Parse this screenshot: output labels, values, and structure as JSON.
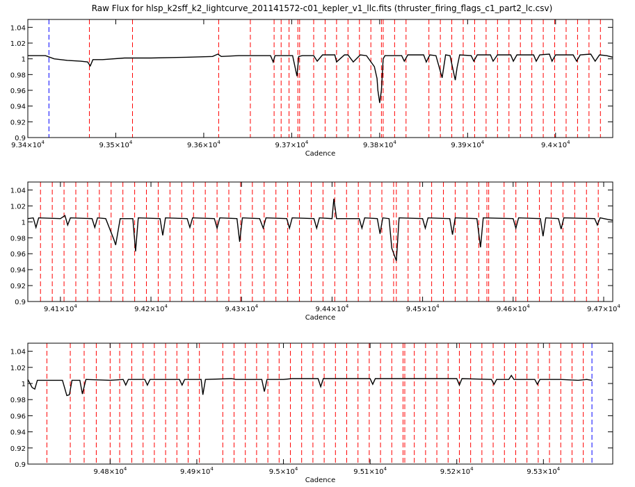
{
  "title": "Raw Flux for hlsp_k2sff_k2_lightcurve_201141572-c01_kepler_v1_llc.fits (thruster_firing_flags_c1_part2_lc.csv)",
  "colors": {
    "flux": "#000000",
    "thruster_flag": "#ff0000",
    "boundary": "#0000ff"
  },
  "chart_data": [
    {
      "type": "line",
      "xlabel": "Cadence",
      "ylabel": "",
      "xlim": [
        93400,
        94065
      ],
      "ylim": [
        0.9,
        1.05
      ],
      "yticks": [
        0.9,
        0.92,
        0.94,
        0.96,
        0.98,
        1,
        1.02,
        1.04
      ],
      "ytick_labels": [
        "0.9",
        "0.92",
        "0.94",
        "0.96",
        "0.98",
        "1",
        "1.02",
        "1.04"
      ],
      "xticks": [
        93400,
        93500,
        93600,
        93700,
        93800,
        93900,
        94000
      ],
      "xtick_labels": [
        {
          "mantissa": "9.34",
          "exp": "4"
        },
        {
          "mantissa": "9.35",
          "exp": "4"
        },
        {
          "mantissa": "9.36",
          "exp": "4"
        },
        {
          "mantissa": "9.37",
          "exp": "4"
        },
        {
          "mantissa": "9.38",
          "exp": "4"
        },
        {
          "mantissa": "9.39",
          "exp": "4"
        },
        {
          "mantissa": "9.4",
          "exp": "4"
        }
      ],
      "boundary_lines": [
        93424
      ],
      "thruster_lines": [
        93470,
        93519,
        93617,
        93653,
        93680,
        93688,
        93697,
        93707,
        93709,
        93725,
        93738,
        93751,
        93764,
        93777,
        93790,
        93802,
        93804,
        93817,
        93830,
        93856,
        93869,
        93882,
        93895,
        93908,
        93921,
        93934,
        93947,
        93960,
        93973,
        93986,
        93999,
        94012,
        94025,
        94038,
        94051
      ],
      "series": [
        {
          "x": [
            93400,
            93420,
            93430,
            93445,
            93460,
            93468,
            93471,
            93474,
            93485,
            93510,
            93540,
            93580,
            93610,
            93616,
            93620,
            93640,
            93676,
            93679,
            93681,
            93688,
            93701,
            93706,
            93708,
            93712,
            93725,
            93729,
            93735,
            93749,
            93751,
            93760,
            93764,
            93770,
            93778,
            93785,
            93794,
            93797,
            93798,
            93800,
            93802,
            93804,
            93806,
            93810,
            93825,
            93828,
            93832,
            93850,
            93853,
            93857,
            93864,
            93871,
            93875,
            93880,
            93886,
            93888,
            93891,
            93904,
            93907,
            93911,
            93926,
            93929,
            93934,
            93949,
            93952,
            93956,
            93975,
            93978,
            93982,
            93993,
            93996,
            94000,
            94020,
            94024,
            94028,
            94040,
            94045,
            94050,
            94058,
            94065
          ],
          "y": [
            1.004,
            1.004,
            1.0,
            0.998,
            0.997,
            0.996,
            0.991,
            0.999,
            0.999,
            1.001,
            1.001,
            1.002,
            1.003,
            1.006,
            1.003,
            1.004,
            1.004,
            0.996,
            1.004,
            1.004,
            1.004,
            0.978,
            1.003,
            1.004,
            1.004,
            0.997,
            1.005,
            1.005,
            0.996,
            1.005,
            1.005,
            0.996,
            1.005,
            1.004,
            0.99,
            0.975,
            0.96,
            0.944,
            0.96,
            1.0,
            1.004,
            1.004,
            1.004,
            0.997,
            1.005,
            1.005,
            0.996,
            1.005,
            1.004,
            0.976,
            1.005,
            1.004,
            0.973,
            0.989,
            1.005,
            1.004,
            0.997,
            1.005,
            1.005,
            0.997,
            1.005,
            1.005,
            0.997,
            1.005,
            1.005,
            0.997,
            1.005,
            1.006,
            0.997,
            1.005,
            1.005,
            0.997,
            1.005,
            1.006,
            0.997,
            1.005,
            1.004,
            1.002
          ]
        }
      ]
    },
    {
      "type": "line",
      "xlabel": "Cadence",
      "ylabel": "",
      "xlim": [
        94064,
        94710
      ],
      "ylim": [
        0.9,
        1.05
      ],
      "yticks": [
        0.9,
        0.92,
        0.94,
        0.96,
        0.98,
        1,
        1.02,
        1.04
      ],
      "ytick_labels": [
        "0.9",
        "0.92",
        "0.94",
        "0.96",
        "0.98",
        "1",
        "1.02",
        "1.04"
      ],
      "xticks": [
        94100,
        94200,
        94300,
        94400,
        94500,
        94600,
        94700
      ],
      "xtick_labels": [
        {
          "mantissa": "9.41",
          "exp": "4"
        },
        {
          "mantissa": "9.42",
          "exp": "4"
        },
        {
          "mantissa": "9.43",
          "exp": "4"
        },
        {
          "mantissa": "9.44",
          "exp": "4"
        },
        {
          "mantissa": "9.45",
          "exp": "4"
        },
        {
          "mantissa": "9.46",
          "exp": "4"
        },
        {
          "mantissa": "9.47",
          "exp": "4"
        }
      ],
      "boundary_lines": [],
      "thruster_lines": [
        94078,
        94091,
        94104,
        94117,
        94130,
        94143,
        94156,
        94169,
        94182,
        94195,
        94208,
        94221,
        94234,
        94247,
        94260,
        94273,
        94286,
        94299,
        94312,
        94325,
        94338,
        94351,
        94364,
        94377,
        94390,
        94403,
        94416,
        94429,
        94442,
        94455,
        94468,
        94471,
        94484,
        94497,
        94510,
        94523,
        94536,
        94549,
        94562,
        94571,
        94573,
        94590,
        94603,
        94616,
        94629,
        94642,
        94655,
        94668,
        94681,
        94694
      ],
      "series": [
        {
          "x": [
            94064,
            94070,
            94073,
            94076,
            94100,
            94105,
            94108,
            94111,
            94135,
            94138,
            94141,
            94150,
            94159,
            94161,
            94166,
            94180,
            94183,
            94186,
            94210,
            94213,
            94216,
            94240,
            94243,
            94246,
            94270,
            94273,
            94276,
            94295,
            94298,
            94301,
            94320,
            94324,
            94327,
            94350,
            94353,
            94356,
            94380,
            94383,
            94386,
            94400,
            94402,
            94405,
            94408,
            94430,
            94433,
            94436,
            94450,
            94453,
            94456,
            94463,
            94466,
            94471,
            94474,
            94500,
            94503,
            94506,
            94530,
            94533,
            94536,
            94560,
            94564,
            94567,
            94600,
            94603,
            94606,
            94630,
            94633,
            94636,
            94650,
            94653,
            94656,
            94690,
            94693,
            94696,
            94705,
            94710
          ],
          "y": [
            1.004,
            1.005,
            0.993,
            1.005,
            1.004,
            1.008,
            0.996,
            1.005,
            1.004,
            0.993,
            1.005,
            1.004,
            0.978,
            0.971,
            1.004,
            1.004,
            0.963,
            1.005,
            1.004,
            0.983,
            1.005,
            1.004,
            0.993,
            1.005,
            1.004,
            0.992,
            1.005,
            1.004,
            0.975,
            1.005,
            1.004,
            0.992,
            1.005,
            1.004,
            0.992,
            1.005,
            1.004,
            0.992,
            1.005,
            1.004,
            1.029,
            1.004,
            1.004,
            1.004,
            0.992,
            1.005,
            1.004,
            0.985,
            1.005,
            1.004,
            0.967,
            0.951,
            1.005,
            1.004,
            0.992,
            1.005,
            1.004,
            0.984,
            1.005,
            1.004,
            0.968,
            1.005,
            1.004,
            0.992,
            1.005,
            1.004,
            0.982,
            1.005,
            1.004,
            0.991,
            1.005,
            1.004,
            0.996,
            1.005,
            1.003,
            1.002
          ]
        }
      ]
    },
    {
      "type": "line",
      "xlabel": "Cadence",
      "ylabel": "",
      "xlim": [
        94705,
        95380
      ],
      "ylim": [
        0.9,
        1.05
      ],
      "yticks": [
        0.9,
        0.92,
        0.94,
        0.96,
        0.98,
        1,
        1.02,
        1.04
      ],
      "ytick_labels": [
        "0.9",
        "0.92",
        "0.94",
        "0.96",
        "0.98",
        "1",
        "1.02",
        "1.04"
      ],
      "xticks": [
        94800,
        94900,
        95000,
        95100,
        95200,
        95300
      ],
      "xtick_labels": [
        {
          "mantissa": "9.48",
          "exp": "4"
        },
        {
          "mantissa": "9.49",
          "exp": "4"
        },
        {
          "mantissa": "9.5",
          "exp": "4"
        },
        {
          "mantissa": "9.51",
          "exp": "4"
        },
        {
          "mantissa": "9.52",
          "exp": "4"
        },
        {
          "mantissa": "9.53",
          "exp": "4"
        }
      ],
      "boundary_lines": [
        95356
      ],
      "thruster_lines": [
        94727,
        94754,
        94770,
        94784,
        94800,
        94811,
        94825,
        94838,
        94851,
        94864,
        94877,
        94890,
        94903,
        94930,
        94943,
        94956,
        94969,
        94982,
        94995,
        95008,
        95021,
        95034,
        95047,
        95060,
        95073,
        95086,
        95099,
        95112,
        95125,
        95138,
        95140,
        95151,
        95164,
        95177,
        95190,
        95203,
        95216,
        95229,
        95242,
        95255,
        95268,
        95281,
        95294,
        95307,
        95320,
        95333,
        95346
      ],
      "series": [
        {
          "x": [
            94705,
            94710,
            94713,
            94716,
            94725,
            94745,
            94750,
            94753,
            94756,
            94765,
            94768,
            94772,
            94800,
            94815,
            94818,
            94821,
            94840,
            94843,
            94846,
            94880,
            94883,
            94886,
            94905,
            94907,
            94910,
            94940,
            94945,
            94950,
            94975,
            94978,
            94981,
            95000,
            95010,
            95040,
            95043,
            95046,
            95100,
            95103,
            95106,
            95150,
            95160,
            95200,
            95203,
            95206,
            95240,
            95243,
            95246,
            95260,
            95263,
            95266,
            95270,
            95290,
            95293,
            95296,
            95320,
            95340,
            95350,
            95356
          ],
          "y": [
            1.005,
            0.995,
            0.993,
            1.004,
            1.004,
            1.004,
            0.985,
            0.986,
            1.004,
            1.004,
            0.987,
            1.005,
            1.004,
            1.005,
            0.998,
            1.005,
            1.005,
            0.998,
            1.005,
            1.005,
            0.998,
            1.005,
            1.005,
            0.986,
            1.005,
            1.006,
            1.005,
            1.005,
            1.005,
            0.99,
            1.005,
            1.005,
            1.006,
            1.006,
            0.996,
            1.006,
            1.006,
            0.999,
            1.006,
            1.006,
            1.006,
            1.006,
            0.998,
            1.006,
            1.005,
            0.999,
            1.005,
            1.005,
            1.01,
            1.005,
            1.005,
            1.005,
            0.999,
            1.005,
            1.005,
            1.004,
            1.005,
            1.004
          ]
        }
      ]
    }
  ]
}
